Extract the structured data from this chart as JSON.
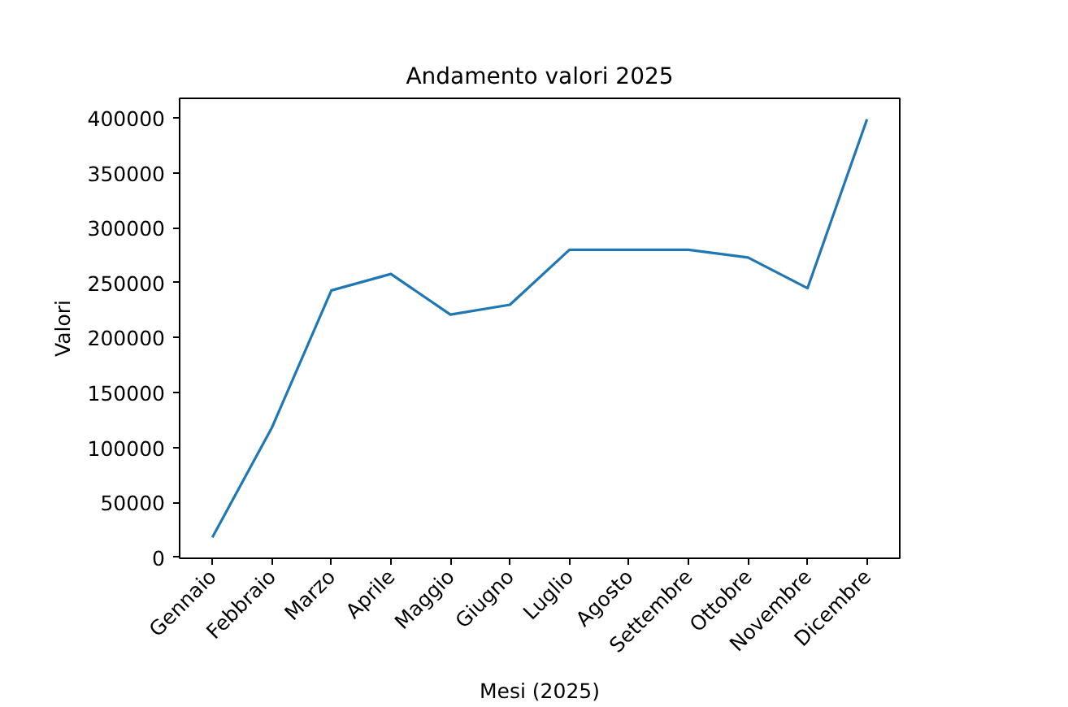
{
  "chart_data": {
    "type": "line",
    "title": "Andamento valori 2025",
    "xlabel": "Mesi (2025)",
    "ylabel": "Valori",
    "categories": [
      "Gennaio",
      "Febbraio",
      "Marzo",
      "Aprile",
      "Maggio",
      "Giugno",
      "Luglio",
      "Agosto",
      "Settembre",
      "Ottobre",
      "Novembre",
      "Dicembre"
    ],
    "series": [
      {
        "color": "#1f77b4",
        "values": [
          18000,
          118000,
          243000,
          258000,
          221000,
          230000,
          280000,
          280000,
          280000,
          273000,
          245000,
          399000
        ]
      }
    ],
    "ylim": [
      -1000,
      418000
    ],
    "yticks": [
      0,
      50000,
      100000,
      150000,
      200000,
      250000,
      300000,
      350000,
      400000
    ],
    "grid": false,
    "line_style": "solid"
  }
}
